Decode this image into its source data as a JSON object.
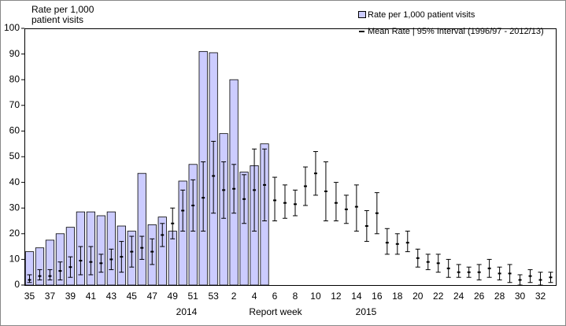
{
  "chart_data": {
    "type": "bar",
    "y_label": "Rate per 1,000 patient visits",
    "x_label": "Report week",
    "year_labels": [
      "2014",
      "2015"
    ],
    "categories": [
      "35",
      null,
      "37",
      null,
      "39",
      null,
      "41",
      null,
      "43",
      null,
      "45",
      null,
      "47",
      null,
      "49",
      null,
      "51",
      null,
      "53",
      null,
      "2",
      null,
      "4",
      null,
      "6",
      null,
      "8",
      null,
      "10",
      null,
      "12",
      null,
      "14",
      null,
      "16",
      null,
      "18",
      null,
      "20",
      null,
      "22",
      null,
      "24",
      null,
      "26",
      null,
      "28",
      null,
      "30",
      null,
      "32",
      null
    ],
    "ylim": [
      0,
      100
    ],
    "yticks": [
      0,
      10,
      20,
      30,
      40,
      50,
      60,
      70,
      80,
      90,
      100
    ],
    "series": [
      {
        "name": "Rate per 1,000 patient visits",
        "type": "bar",
        "color": "#ccccff",
        "values": [
          13,
          14.5,
          17.5,
          20,
          22.5,
          28.5,
          28.5,
          27,
          28.5,
          23,
          21,
          43.5,
          23.5,
          26.5,
          21,
          40.5,
          47,
          91,
          90.5,
          59,
          80,
          44,
          46.5,
          55,
          null,
          null,
          null,
          null,
          null,
          null,
          null,
          null,
          null,
          null,
          null,
          null,
          null,
          null,
          null,
          null,
          null,
          null,
          null,
          null,
          null,
          null,
          null,
          null,
          null,
          null,
          null,
          null
        ]
      },
      {
        "name": "Mean Rate | 95% Interval (1996/97 - 2012/13)",
        "type": "errorbar",
        "color": "#000000",
        "values": [
          2,
          3.5,
          3.5,
          5.5,
          7,
          9.5,
          9,
          8.5,
          10,
          11,
          13,
          14.5,
          13,
          19.5,
          24,
          29,
          31,
          34,
          42.5,
          37,
          37.5,
          33.5,
          37,
          39,
          33,
          32,
          31.5,
          38.5,
          43.5,
          36.5,
          32,
          29.5,
          30.5,
          23,
          28,
          16.5,
          16,
          16.5,
          10.5,
          9,
          8.5,
          6.5,
          5,
          5,
          5,
          6.5,
          4.5,
          4.5,
          2,
          3.5,
          2,
          3
        ],
        "lower": [
          1,
          2,
          2,
          2,
          3,
          4,
          4,
          5,
          6,
          5,
          7,
          10,
          8,
          15,
          18,
          21,
          21,
          21,
          28,
          26,
          28,
          24,
          21,
          25,
          25,
          26,
          27,
          31,
          35,
          25,
          25,
          24,
          21,
          17,
          20,
          12,
          12,
          13,
          7,
          6,
          5,
          3,
          3,
          3,
          2,
          3,
          2,
          1,
          0,
          1,
          0,
          1
        ],
        "upper": [
          4,
          6,
          6,
          9,
          11,
          15,
          15,
          12,
          14,
          17,
          19,
          19,
          18,
          24,
          30,
          37,
          41,
          48,
          56,
          48,
          47,
          43,
          53,
          53,
          42,
          39,
          37,
          46,
          52,
          48,
          40,
          35,
          39,
          29,
          36,
          22,
          20,
          21,
          14,
          12,
          12,
          10,
          8,
          7,
          8,
          10,
          7,
          8,
          4,
          6,
          5,
          5
        ]
      }
    ]
  }
}
